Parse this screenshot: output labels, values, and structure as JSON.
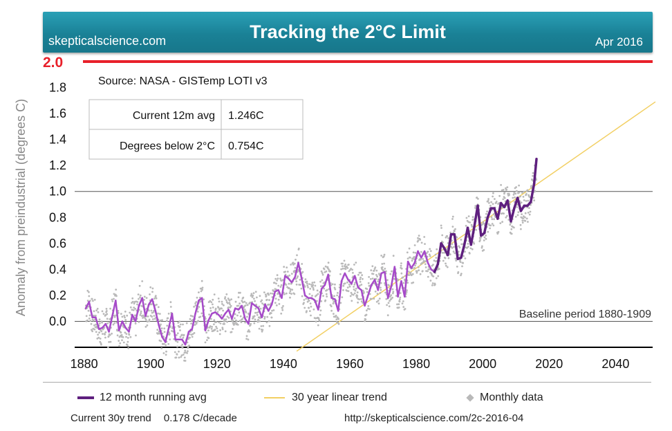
{
  "header": {
    "site": "skepticalscience.com",
    "title": "Tracking the 2°C Limit",
    "date": "Apr 2016"
  },
  "source_text": "Source: NASA - GISTemp LOTI v3",
  "stats_table": [
    {
      "label": "Current 12m avg",
      "value": "1.246C"
    },
    {
      "label": "Degrees below 2°C",
      "value": "0.754C"
    }
  ],
  "baseline_label": "Baseline period 1880-1909",
  "limit_label": "2.0",
  "legend": {
    "running_avg": "12 month running avg",
    "trend": "30 year linear trend",
    "monthly": "Monthly data"
  },
  "footer": {
    "trend_label": "Current 30y trend",
    "trend_value": "0.178 C/decade",
    "url": "http://skepticalscience.com/2c-2016-04"
  },
  "colors": {
    "running_avg_early": "#a64ac9",
    "running_avg_late": "#5e1f7e",
    "trend": "#f2cf62",
    "monthly": "#b9b9b9",
    "limit_line": "#e8202a",
    "banner": "#1f8aa0"
  },
  "chart_data": {
    "type": "line",
    "xlabel": "",
    "ylabel": "Anomaly from preindustrial (degrees C)",
    "xlim": [
      1878,
      2052
    ],
    "ylim": [
      -0.2,
      2.0
    ],
    "x_ticks": [
      "1880",
      "1900",
      "1920",
      "1940",
      "1960",
      "1980",
      "2000",
      "2020",
      "2040"
    ],
    "y_ticks": [
      "0.0",
      "0.2",
      "0.4",
      "0.6",
      "0.8",
      "1.0",
      "1.2",
      "1.4",
      "1.6",
      "1.8"
    ],
    "reference_lines": [
      0.0,
      1.0
    ],
    "limit": 2.0,
    "series": [
      {
        "name": "12 month running avg",
        "x": [
          1880.5,
          1881.5,
          1882.5,
          1883.5,
          1884.5,
          1885.5,
          1886.5,
          1887.5,
          1888.5,
          1889.5,
          1890.5,
          1891.5,
          1892.5,
          1893.5,
          1894.5,
          1895.5,
          1896.5,
          1897.5,
          1898.5,
          1899.5,
          1900.5,
          1901.5,
          1902.5,
          1903.5,
          1904.5,
          1905.5,
          1906.5,
          1907.5,
          1908.5,
          1909.5,
          1910.5,
          1911.5,
          1912.5,
          1913.5,
          1914.5,
          1915.5,
          1916.5,
          1917.5,
          1918.5,
          1919.5,
          1920.5,
          1921.5,
          1922.5,
          1923.5,
          1924.5,
          1925.5,
          1926.5,
          1927.5,
          1928.5,
          1929.5,
          1930.5,
          1931.5,
          1932.5,
          1933.5,
          1934.5,
          1935.5,
          1936.5,
          1937.5,
          1938.5,
          1939.5,
          1940.5,
          1941.5,
          1942.5,
          1943.5,
          1944.5,
          1945.5,
          1946.5,
          1947.5,
          1948.5,
          1949.5,
          1950.5,
          1951.5,
          1952.5,
          1953.5,
          1954.5,
          1955.5,
          1956.5,
          1957.5,
          1958.5,
          1959.5,
          1960.5,
          1961.5,
          1962.5,
          1963.5,
          1964.5,
          1965.5,
          1966.5,
          1967.5,
          1968.5,
          1969.5,
          1970.5,
          1971.5,
          1972.5,
          1973.5,
          1974.5,
          1975.5,
          1976.5,
          1977.5,
          1978.5,
          1979.5,
          1980.5,
          1981.5,
          1982.5,
          1983.5,
          1984.5,
          1985.5,
          1986.5,
          1987.5,
          1988.5,
          1989.5,
          1990.5,
          1991.5,
          1992.5,
          1993.5,
          1994.5,
          1995.5,
          1996.5,
          1997.5,
          1998.5,
          1999.5,
          2000.5,
          2001.5,
          2002.5,
          2003.5,
          2004.5,
          2005.5,
          2006.5,
          2007.5,
          2008.5,
          2009.5,
          2010.5,
          2011.5,
          2012.5,
          2013.5,
          2014.5,
          2015.5,
          2016.2
        ],
        "values": [
          0.1,
          0.15,
          0.03,
          0.03,
          -0.06,
          -0.05,
          -0.02,
          -0.08,
          0.04,
          0.16,
          -0.07,
          0.0,
          -0.05,
          -0.08,
          0.05,
          0.0,
          0.12,
          0.18,
          0.04,
          0.13,
          0.17,
          0.08,
          -0.03,
          -0.12,
          -0.16,
          -0.05,
          0.06,
          -0.14,
          -0.14,
          -0.14,
          -0.18,
          -0.08,
          -0.06,
          0.06,
          0.16,
          0.18,
          -0.07,
          0.01,
          0.06,
          0.07,
          0.05,
          0.02,
          0.06,
          0.09,
          0.02,
          0.1,
          0.09,
          0.12,
          0.02,
          -0.02,
          0.14,
          0.12,
          0.1,
          0.03,
          0.13,
          0.08,
          0.13,
          0.23,
          0.24,
          0.18,
          0.35,
          0.33,
          0.3,
          0.34,
          0.45,
          0.33,
          0.2,
          0.18,
          0.18,
          0.16,
          0.09,
          0.25,
          0.28,
          0.36,
          0.18,
          0.17,
          0.08,
          0.31,
          0.37,
          0.32,
          0.29,
          0.35,
          0.26,
          0.24,
          0.12,
          0.2,
          0.28,
          0.32,
          0.24,
          0.37,
          0.38,
          0.18,
          0.27,
          0.42,
          0.19,
          0.31,
          0.19,
          0.46,
          0.41,
          0.45,
          0.54,
          0.49,
          0.54,
          0.45,
          0.4,
          0.38,
          0.44,
          0.6,
          0.56,
          0.51,
          0.67,
          0.67,
          0.48,
          0.49,
          0.59,
          0.72,
          0.59,
          0.73,
          0.89,
          0.66,
          0.68,
          0.8,
          0.87,
          0.87,
          0.79,
          0.91,
          0.88,
          0.93,
          0.77,
          0.87,
          0.95,
          0.85,
          0.89,
          0.89,
          0.92,
          1.06,
          1.25
        ]
      },
      {
        "name": "30 year linear trend",
        "x": [
          1944,
          2052
        ],
        "values": [
          -0.23,
          1.69
        ]
      },
      {
        "name": "Monthly data",
        "type": "scatter",
        "note_points": "monthly scatter around running average"
      }
    ]
  }
}
